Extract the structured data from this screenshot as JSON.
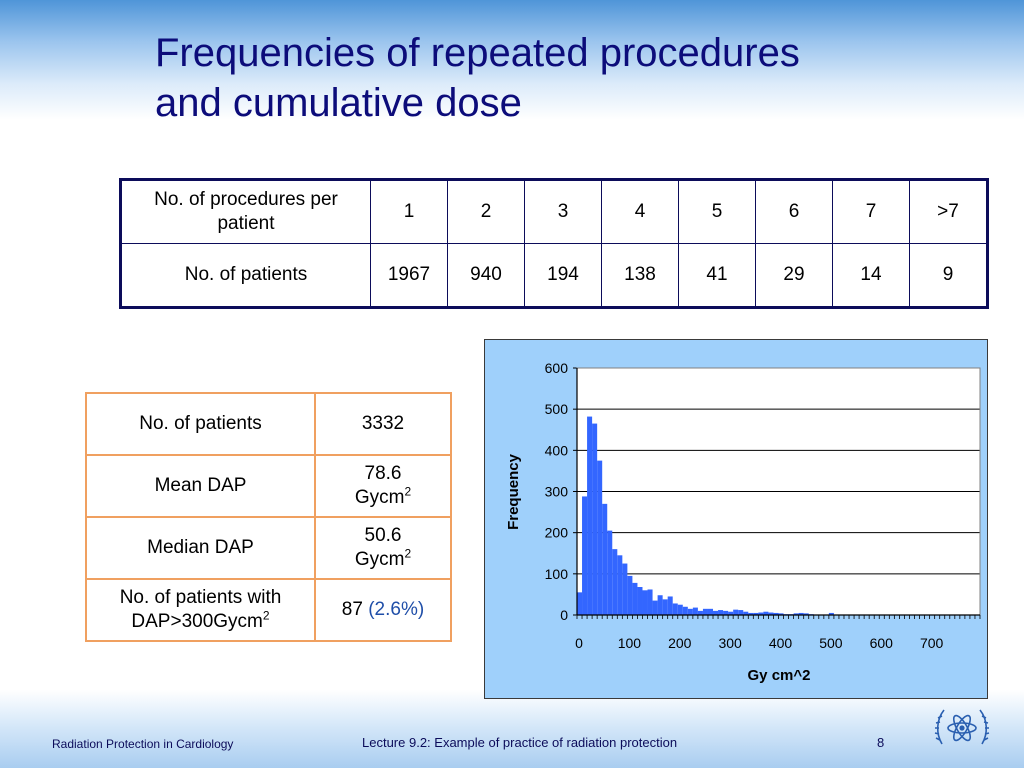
{
  "slide": {
    "title_line1": "Frequencies of repeated procedures",
    "title_line2": "and cumulative dose"
  },
  "freq_table": {
    "row1_label": "No. of procedures per patient",
    "row2_label": "No. of patients",
    "columns": [
      "1",
      "2",
      "3",
      "4",
      "5",
      "6",
      "7",
      ">7"
    ],
    "patients": [
      "1967",
      "940",
      "194",
      "138",
      "41",
      "29",
      "14",
      "9"
    ]
  },
  "stats_table": {
    "rows": [
      {
        "label": "No. of patients",
        "value": "3332"
      },
      {
        "label": "Mean DAP",
        "value_line1": "78.6",
        "value_line2": "Gycm",
        "value_sup": "2"
      },
      {
        "label": "Median DAP",
        "value_line1": "50.6",
        "value_line2": "Gycm",
        "value_sup": "2"
      },
      {
        "label_line1": "No. of patients with",
        "label_line2": "DAP>300Gycm",
        "label_sup": "2",
        "value_main": "87 ",
        "value_pct": "(2.6%)"
      }
    ]
  },
  "chart_data": {
    "type": "bar",
    "title": "",
    "xlabel": "Gy cm^2",
    "ylabel": "Frequency",
    "ylim": [
      0,
      600
    ],
    "yticks": [
      0,
      100,
      200,
      300,
      400,
      500,
      600
    ],
    "xticks": [
      0,
      100,
      200,
      300,
      400,
      500,
      600,
      700
    ],
    "xlim": [
      0,
      800
    ],
    "bin_width": 10,
    "bin_starts": [
      0,
      10,
      20,
      30,
      40,
      50,
      60,
      70,
      80,
      90,
      100,
      110,
      120,
      130,
      140,
      150,
      160,
      170,
      180,
      190,
      200,
      210,
      220,
      230,
      240,
      250,
      260,
      270,
      280,
      290,
      300,
      310,
      320,
      330,
      340,
      350,
      360,
      370,
      380,
      390,
      400,
      410,
      420,
      430,
      440,
      450,
      460,
      470,
      480,
      490,
      500
    ],
    "values": [
      55,
      288,
      482,
      465,
      375,
      270,
      205,
      160,
      145,
      125,
      95,
      78,
      68,
      60,
      62,
      35,
      48,
      38,
      45,
      28,
      25,
      20,
      15,
      18,
      10,
      15,
      15,
      10,
      12,
      10,
      8,
      13,
      12,
      8,
      5,
      5,
      6,
      8,
      6,
      5,
      4,
      2,
      2,
      4,
      5,
      4,
      2,
      1,
      1,
      1,
      5
    ],
    "bar_color": "#3366ff",
    "grid": true,
    "legend": "none"
  },
  "footer": {
    "left": "Radiation Protection in Cardiology",
    "center": "Lecture 9.2: Example of practice of radiation protection",
    "page": "8"
  },
  "icons": {
    "logo": "iaea-logo-icon"
  }
}
